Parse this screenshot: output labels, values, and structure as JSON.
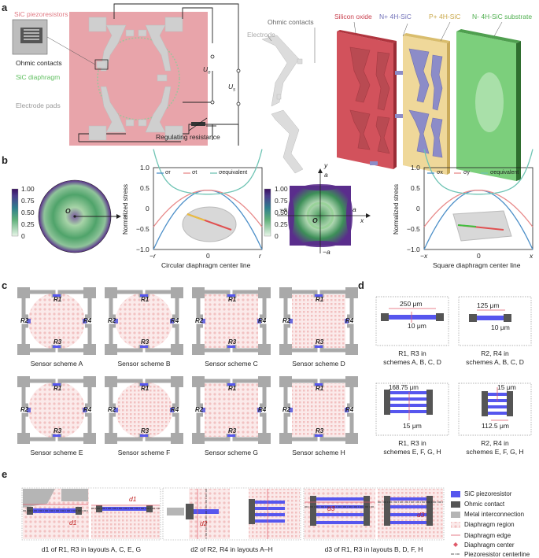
{
  "panel_a": {
    "letter": "a",
    "labels": {
      "sic_piezoresistors": "SiC piezoresistors",
      "ohmic_contacts": "Ohmic contacts",
      "sic_diaphragm": "SiC diaphragm",
      "electrode_pads": "Electrode pads",
      "regulating_resistance": "Regulating resistance",
      "uo": "U",
      "uo_sub": "o",
      "us": "U",
      "us_sub": "s"
    },
    "layers": {
      "ohmic_contacts": "Ohmic contacts",
      "electrode": "Electrode",
      "silicon_oxide": "Silicon oxide",
      "n_plus": "N+ 4H-SiC",
      "p_plus": "P+ 4H-SiC",
      "n_minus": "N- 4H-SiC substrate"
    },
    "colors": {
      "pink": "#e8a4aa",
      "oxide": "#c9414f",
      "nplus": "#8c8cc8",
      "pplus": "#d9c07a",
      "nminus": "#5fbf5f"
    }
  },
  "panel_b": {
    "letter": "b",
    "colorbar_ticks": [
      "1.00",
      "0.75",
      "0.50",
      "0.25",
      "0"
    ],
    "circ_o": "O",
    "circ_r": "r",
    "chart1": {
      "ylabel": "Normalized stress",
      "xlabel": "Circular diaphragm center line",
      "yticks": [
        "1.0",
        "0.5",
        "0",
        "−0.5",
        "−1.0"
      ],
      "xticks": [
        "−r",
        "0",
        "r"
      ],
      "legend": [
        "σr",
        "σt",
        "σequivalent"
      ]
    },
    "square": {
      "y": "y",
      "a_top": "a",
      "a_right": "a",
      "neg_a_left": "−a",
      "neg_a_bottom": "−a",
      "x": "x",
      "o": "O"
    },
    "chart2": {
      "ylabel": "Normalized stress",
      "xlabel": "Square diaphragm center line",
      "yticks": [
        "1.0",
        "0.5",
        "0",
        "−0.5",
        "−1.0"
      ],
      "xticks": [
        "−x",
        "0",
        "x"
      ],
      "legend": [
        "σx",
        "σy",
        "σequivalent"
      ]
    }
  },
  "panel_c": {
    "letter": "c",
    "schemes": [
      "Sensor scheme A",
      "Sensor scheme B",
      "Sensor scheme C",
      "Sensor scheme D",
      "Sensor scheme E",
      "Sensor scheme F",
      "Sensor scheme G",
      "Sensor scheme H"
    ],
    "r1": "R1",
    "r2": "R2",
    "r3": "R3",
    "r4": "R4"
  },
  "panel_d": {
    "letter": "d",
    "boxes": [
      {
        "dim1": "250 μm",
        "dim2": "10 μm",
        "cap1": "R1, R3 in",
        "cap2": "schemes A, B, C, D"
      },
      {
        "dim1": "125 μm",
        "dim2": "10 μm",
        "cap1": "R2, R4 in",
        "cap2": "schemes A, B, C, D"
      },
      {
        "dim1": "168.75 μm",
        "dim2": "15 μm",
        "cap1": "R1, R3 in",
        "cap2": "schemes E, F, G, H"
      },
      {
        "dim1": "15 μm",
        "dim2": "112.5 μm",
        "cap1": "R2, R4 in",
        "cap2": "schemes E, F, G, H"
      }
    ]
  },
  "panel_e": {
    "letter": "e",
    "captions": [
      "d1 of R1, R3 in layouts A, C, E, G",
      "d2 of R2, R4 in layouts A–H",
      "d3 of R1, R3 in layouts B, D, F, H"
    ],
    "d1": "d1",
    "d2": "d2",
    "d3": "d3",
    "legend": [
      "SiC piezoresistor",
      "Ohmic contact",
      "Metal interconnection",
      "Diaphragm region",
      "Diaphragm edge",
      "Diaphragm center",
      "Piezoresistor centerline"
    ],
    "legend_colors": {
      "piezo": "#5656ee",
      "ohmic": "#555555",
      "metal": "#b5b5b5",
      "region": "#f7d5d5",
      "edge": "#e05a6a",
      "center": "#e05a6a"
    }
  }
}
